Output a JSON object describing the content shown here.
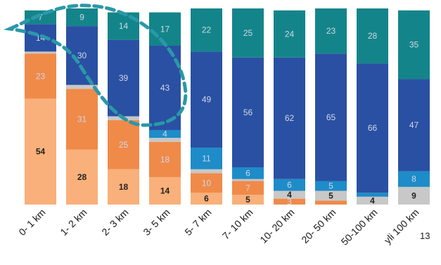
{
  "page_number": "13",
  "colors": {
    "walk": "#f9b07a",
    "bike": "#f08a49",
    "grey": "#c8c8c8",
    "blue": "#1e8cc8",
    "car": "#2a50a3",
    "teal": "#13858a",
    "dark_label": "#222222",
    "light_label": "#d0d6e6",
    "highlight": "#2a98a8"
  },
  "chart_data": {
    "type": "bar",
    "stacked": true,
    "percent": true,
    "categories": [
      "0- 1 km",
      "1- 2 km",
      "2- 3 km",
      "3- 5 km",
      "5- 7 km",
      "7- 10 km",
      "10- 20 km",
      "20- 50 km",
      "50-100 km",
      "yli 100 km"
    ],
    "series": [
      {
        "key": "s1",
        "color": "#f9b07a",
        "values": [
          54,
          28,
          18,
          14,
          6,
          5,
          0,
          0,
          0,
          0
        ],
        "labels": [
          "54",
          "28",
          "18",
          "14",
          "6",
          "5",
          "",
          "",
          "",
          ""
        ],
        "label_color": "dark"
      },
      {
        "key": "s2",
        "color": "#f08a49",
        "values": [
          23,
          31,
          25,
          18,
          10,
          7,
          3,
          2,
          0,
          0
        ],
        "labels": [
          "23",
          "31",
          "25",
          "18",
          "10",
          "7",
          "3",
          "",
          "",
          ""
        ],
        "label_color": "light"
      },
      {
        "key": "s3",
        "color": "#c8c8c8",
        "values": [
          1,
          2,
          2,
          2,
          2,
          1,
          4,
          5,
          4,
          9
        ],
        "labels": [
          "",
          "",
          "",
          "",
          "",
          "",
          "4",
          "5",
          "4",
          "9"
        ],
        "label_color": "dark"
      },
      {
        "key": "s4",
        "color": "#1e8cc8",
        "values": [
          0,
          0,
          0,
          4,
          11,
          6,
          6,
          5,
          2,
          8
        ],
        "labels": [
          "",
          "",
          "",
          "4",
          "11",
          "6",
          "6",
          "5",
          "",
          "8"
        ],
        "label_color": "light"
      },
      {
        "key": "s5",
        "color": "#2a50a3",
        "values": [
          14,
          30,
          39,
          43,
          49,
          56,
          62,
          65,
          66,
          47
        ],
        "labels": [
          "14",
          "30",
          "39",
          "43",
          "49",
          "56",
          "62",
          "65",
          "66",
          "47"
        ],
        "label_color": "light"
      },
      {
        "key": "s6",
        "color": "#13858a",
        "values": [
          7,
          9,
          14,
          17,
          22,
          25,
          24,
          23,
          28,
          35
        ],
        "labels": [
          "7",
          "9",
          "14",
          "17",
          "22",
          "25",
          "24",
          "23",
          "28",
          "35"
        ],
        "label_color": "light"
      }
    ],
    "ylim": [
      0,
      100
    ],
    "xlabel": "",
    "ylabel": "",
    "legend": "none",
    "grid": false,
    "annotations": [
      {
        "type": "dashed-ellipse",
        "color": "#2a98a8",
        "covers_categories": [
          "1- 2 km",
          "2- 3 km",
          "3- 5 km"
        ]
      }
    ]
  }
}
